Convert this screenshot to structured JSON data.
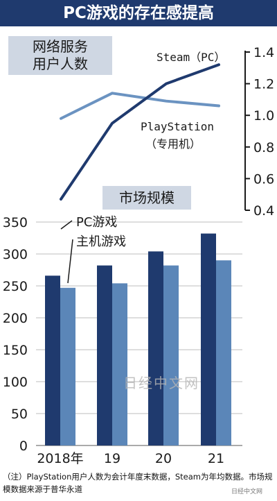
{
  "title": "PC游戏的存在感提高",
  "colors": {
    "pc": "#1f3a6e",
    "console": "#5b86b8",
    "steam_line": "#1f3a6e",
    "ps_line": "#6b93c1",
    "title_bg": "#1f3a6e",
    "box_bg": "#cfd7e3"
  },
  "chart_data": [
    {
      "type": "line",
      "title": "网络服务用户人数",
      "title_lines": [
        "网络服务",
        "用户人数"
      ],
      "ylim": [
        0.4,
        1.4
      ],
      "y_ticks": [
        "0.4",
        "0.6",
        "0.8",
        "1.0",
        "1.2",
        "1.4"
      ],
      "x": [
        "2018年",
        "19",
        "20",
        "21"
      ],
      "series": [
        {
          "name": "Steam（PC）",
          "values": [
            0.47,
            0.95,
            1.2,
            1.32
          ]
        },
        {
          "name": "PlayStation（专用机）",
          "name_lines": [
            "PlayStation",
            "（专用机）"
          ],
          "values": [
            0.98,
            1.14,
            1.09,
            1.06
          ]
        }
      ]
    },
    {
      "type": "bar",
      "title": "市场规模",
      "categories": [
        "2018年",
        "19",
        "20",
        "21"
      ],
      "ylim": [
        0,
        350
      ],
      "y_ticks": [
        "0",
        "50",
        "100",
        "150",
        "200",
        "250",
        "300",
        "350"
      ],
      "series": [
        {
          "name": "PC游戏",
          "values": [
            266,
            282,
            304,
            332
          ]
        },
        {
          "name": "主机游戏",
          "values": [
            247,
            254,
            282,
            290
          ]
        }
      ]
    }
  ],
  "footnote": "（注）PlayStation用户人数为会计年度末数据，Steam为年均数据。市场规模数据来源于普华永道",
  "watermark": "日经中文网",
  "corner_mark": "日经中文网"
}
